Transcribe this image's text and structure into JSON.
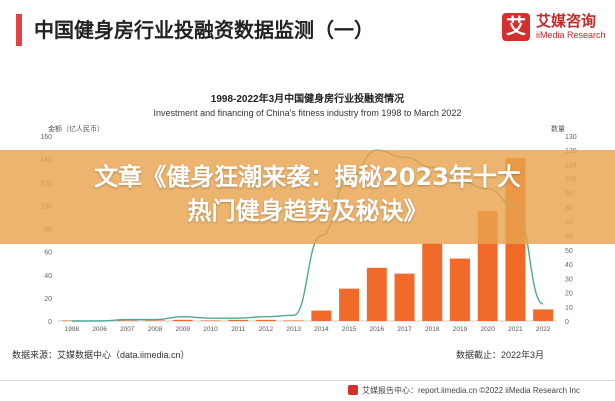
{
  "header": {
    "title": "中国健身房行业投融资数据监测（一）",
    "logo_glyph": "艾",
    "logo_cn": "艾媒咨询",
    "logo_en": "iiMedia Research"
  },
  "banner": {
    "line1": "文章《健身狂潮来袭：揭秘2023年十大",
    "line2": "热门健身趋势及秘诀》"
  },
  "colors": {
    "accent": "#e0443c",
    "bar": "#f26a2a",
    "line": "#4aa89a",
    "banner": "#e8a44e"
  },
  "chart_data": {
    "type": "bar",
    "title": "1998-2022年3月中国健身房行业投融资情况",
    "subtitle": "Investment and financing of China's fitness industry from 1998 to March 2022",
    "ylabel_left": "金额（亿人民币）",
    "ylabel_right": "数量",
    "categories": [
      "1998",
      "2006",
      "2007",
      "2008",
      "2009",
      "2010",
      "2011",
      "2012",
      "2013",
      "2014",
      "2015",
      "2016",
      "2017",
      "2018",
      "2019",
      "2020",
      "2021",
      "2022"
    ],
    "y_left_ticks": [
      "0",
      "20",
      "40",
      "60",
      "80",
      "100",
      "120",
      "140",
      "160"
    ],
    "y_right_ticks": [
      "0",
      "10",
      "20",
      "30",
      "40",
      "50",
      "60",
      "70",
      "80",
      "90",
      "100",
      "110",
      "120",
      "130"
    ],
    "ylim_left": [
      0,
      160
    ],
    "ylim_right": [
      0,
      130
    ],
    "series": [
      {
        "type": "bar",
        "axis": "left",
        "values": [
          0.5,
          0.5,
          0.5,
          0.5,
          1,
          0.5,
          1,
          1,
          0.5,
          9,
          28,
          46,
          41,
          67,
          54,
          95,
          141,
          10
        ]
      },
      {
        "type": "line",
        "axis": "right",
        "values": [
          0,
          0,
          1,
          1,
          3,
          2,
          2,
          3,
          4,
          60,
          100,
          120,
          115,
          108,
          98,
          93,
          80,
          12
        ]
      }
    ]
  },
  "source": "数据来源：艾媒数据中心（data.iimedia.cn）",
  "deadline": "数据截止：2022年3月",
  "footer": "艾媒报告中心：report.iimedia.cn   ©2022   iiMedia Research  Inc"
}
